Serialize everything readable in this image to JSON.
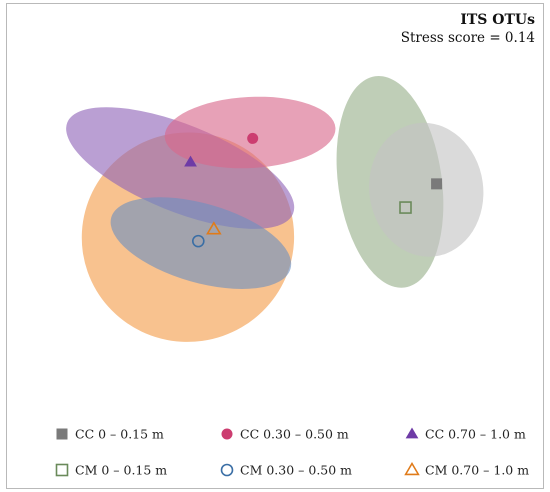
{
  "chart_data": {
    "type": "scatter",
    "title": "ITS OTUs",
    "subtitle": "Stress score = 0.14",
    "xlabel": "",
    "ylabel": "",
    "xlim": [
      -1.0,
      1.0
    ],
    "ylim": [
      -1.0,
      1.0
    ],
    "grid": false,
    "legend_position": "bottom",
    "series": [
      {
        "name": "CC 0 – 0.15 m",
        "marker": "square-filled",
        "color": "#7a7a7a",
        "fill": "#c4c4c4",
        "centroid": [
          0.62,
          0.14
        ],
        "ellipse": {
          "cx": 0.58,
          "cy": 0.11,
          "rx": 0.22,
          "ry": 0.34,
          "angle": -8
        }
      },
      {
        "name": "CC 0.30 – 0.50 m",
        "marker": "circle-filled",
        "color": "#cc3d70",
        "fill": "#d9688a",
        "centroid": [
          -0.09,
          0.37
        ],
        "ellipse": {
          "cx": -0.1,
          "cy": 0.4,
          "rx": 0.33,
          "ry": 0.18,
          "angle": -3
        }
      },
      {
        "name": "CC 0.70 – 1.0 m",
        "marker": "triangle-filled",
        "color": "#6e3ba6",
        "fill": "#8f64b8",
        "centroid": [
          -0.33,
          0.25
        ],
        "ellipse": {
          "cx": -0.37,
          "cy": 0.22,
          "rx": 0.47,
          "ry": 0.22,
          "angle": 22
        }
      },
      {
        "name": "CM 0 – 0.15 m",
        "marker": "square-open",
        "color": "#6a8a5a",
        "fill": "#98b08a",
        "centroid": [
          0.5,
          0.02
        ],
        "ellipse": {
          "cx": 0.44,
          "cy": 0.15,
          "rx": 0.2,
          "ry": 0.54,
          "angle": -8
        }
      },
      {
        "name": "CM 0.30 – 0.50 m",
        "marker": "circle-open",
        "color": "#3a6ea5",
        "fill": "#6e8fc0",
        "centroid": [
          -0.3,
          -0.15
        ],
        "ellipse": {
          "cx": -0.29,
          "cy": -0.16,
          "rx": 0.36,
          "ry": 0.2,
          "angle": 16
        }
      },
      {
        "name": "CM 0.70 – 1.0 m",
        "marker": "triangle-open",
        "color": "#e07b1a",
        "fill": "#f49d4a",
        "centroid": [
          -0.24,
          -0.09
        ],
        "ellipse": {
          "cx": -0.34,
          "cy": -0.13,
          "rx": 0.41,
          "ry": 0.53,
          "angle": -8
        }
      }
    ]
  }
}
